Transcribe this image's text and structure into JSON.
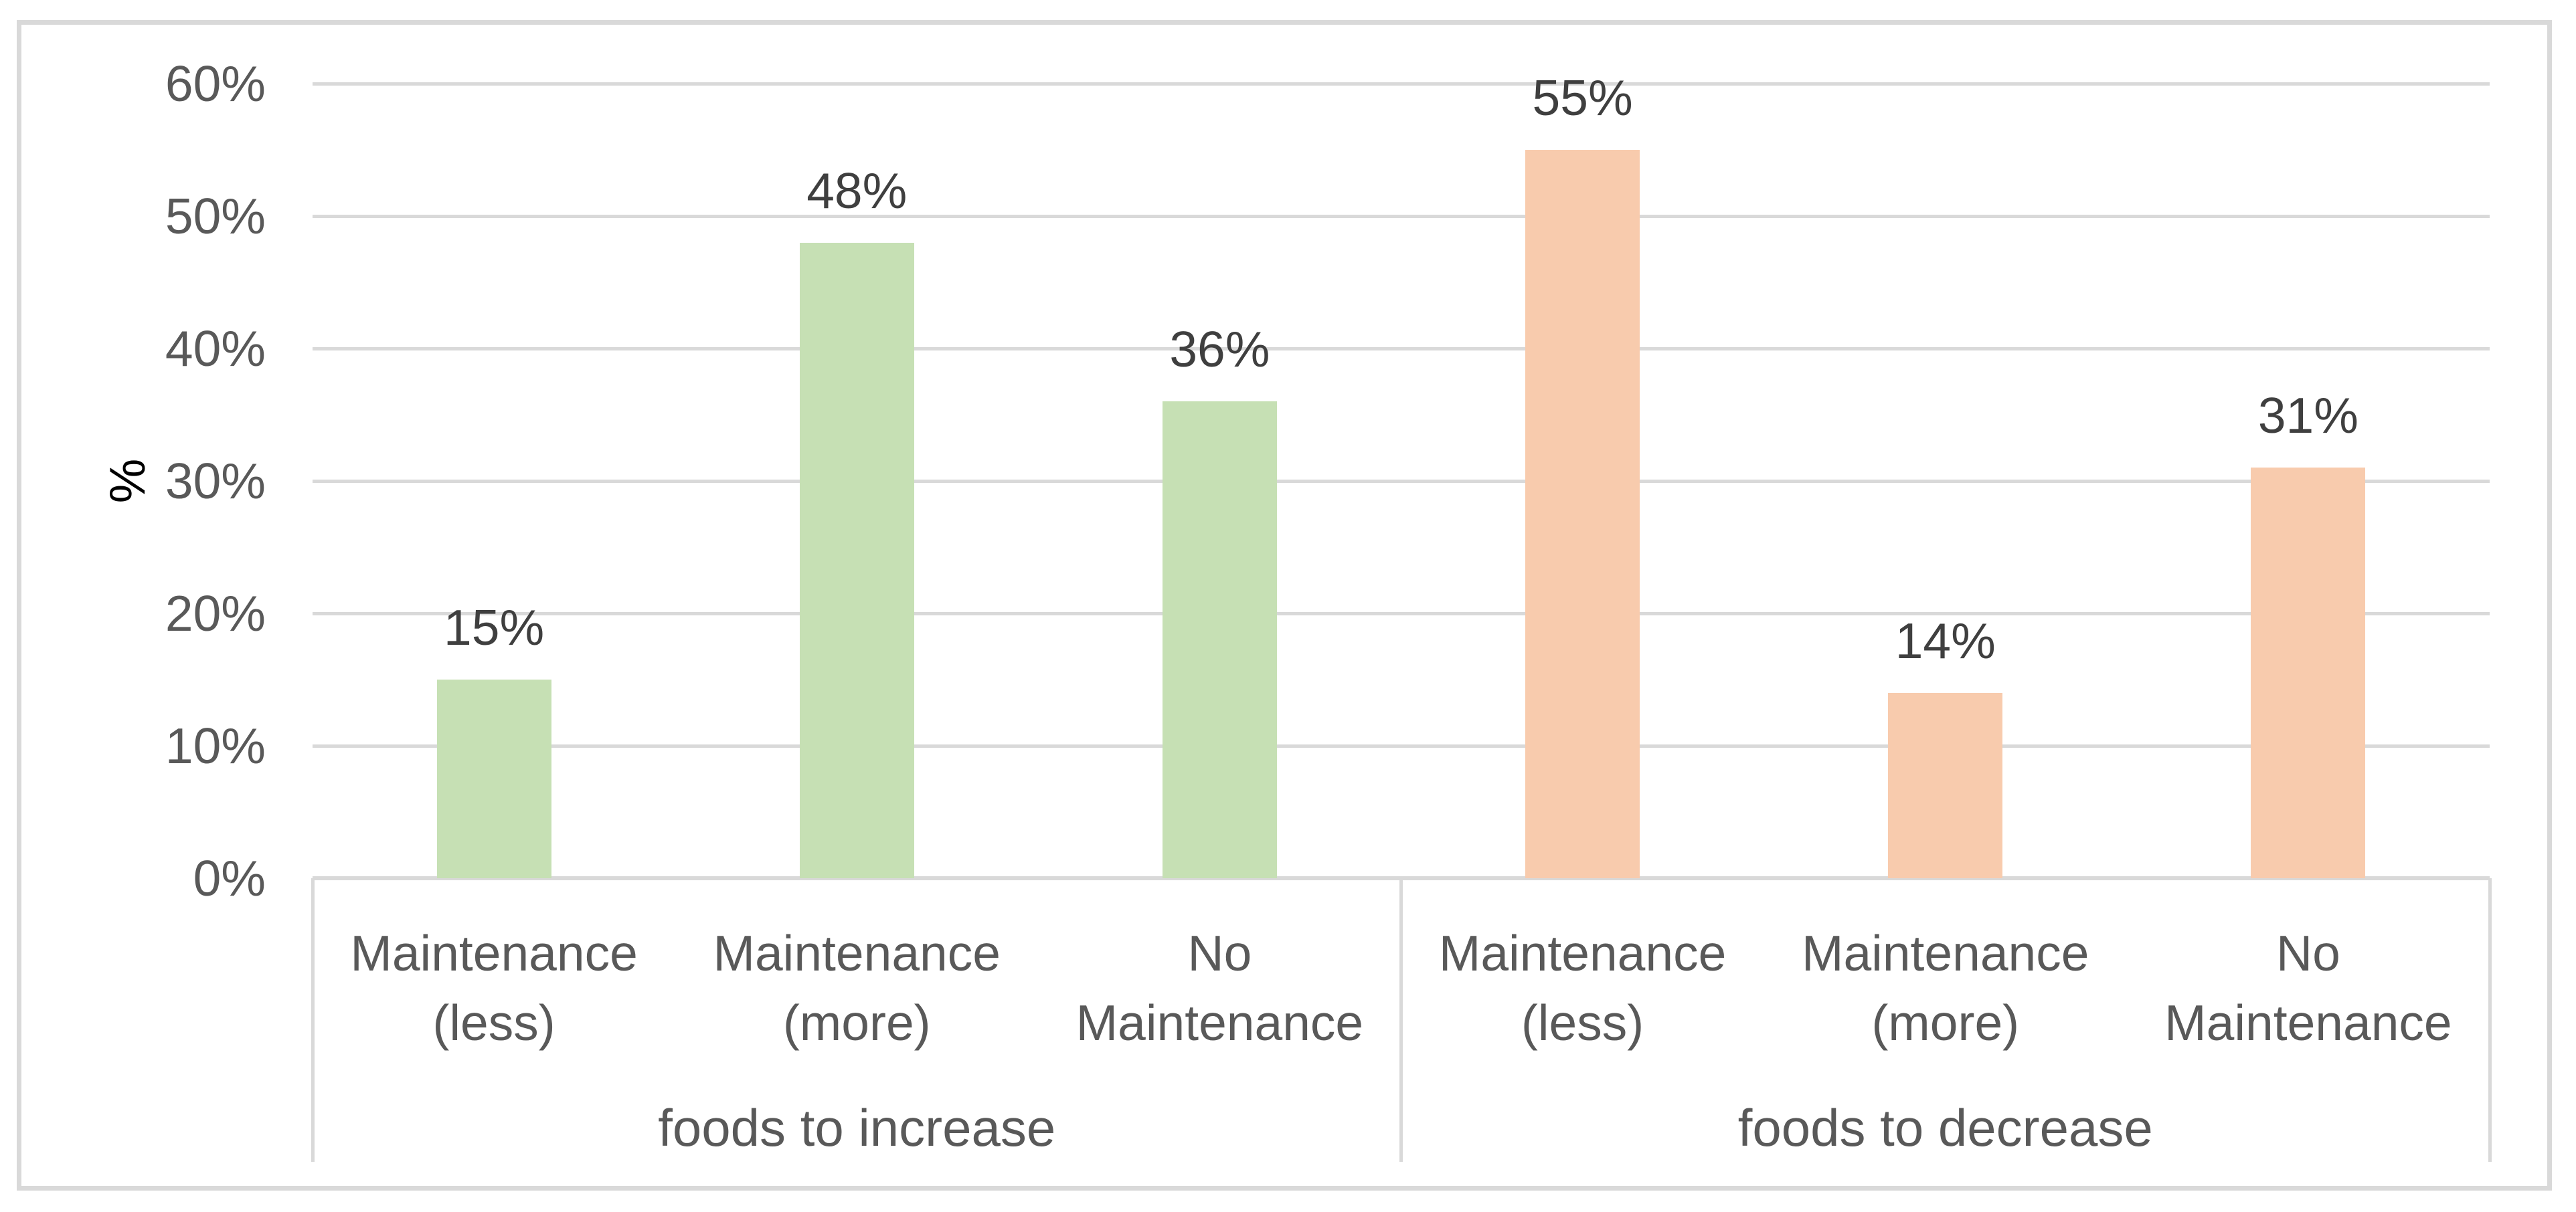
{
  "chart_data": {
    "type": "bar",
    "title": "",
    "xlabel": "",
    "ylabel": "%",
    "ylim": [
      0,
      60
    ],
    "grid": true,
    "legend": "none",
    "ytick_values": [
      0,
      10,
      20,
      30,
      40,
      50,
      60
    ],
    "ytick_labels": [
      "0%",
      "10%",
      "20%",
      "30%",
      "40%",
      "50%",
      "60%"
    ],
    "groups": [
      {
        "label": "foods to increase",
        "color": "#c6e0b4",
        "categories": [
          {
            "label": "Maintenance (less)",
            "lines": [
              "Maintenance",
              "(less)"
            ],
            "value": 15,
            "value_label": "15%"
          },
          {
            "label": "Maintenance (more)",
            "lines": [
              "Maintenance",
              "(more)"
            ],
            "value": 48,
            "value_label": "48%"
          },
          {
            "label": "No Maintenance",
            "lines": [
              "No",
              "Maintenance"
            ],
            "value": 36,
            "value_label": "36%"
          }
        ]
      },
      {
        "label": "foods to decrease",
        "color": "#f8cbad",
        "categories": [
          {
            "label": "Maintenance (less)",
            "lines": [
              "Maintenance",
              "(less)"
            ],
            "value": 55,
            "value_label": "55%"
          },
          {
            "label": "Maintenance (more)",
            "lines": [
              "Maintenance",
              "(more)"
            ],
            "value": 14,
            "value_label": "14%"
          },
          {
            "label": "No Maintenance",
            "lines": [
              "No",
              "Maintenance"
            ],
            "value": 31,
            "value_label": "31%"
          }
        ]
      }
    ]
  },
  "colors": {
    "background": "#ffffff",
    "frame_border": "#d9d9d9",
    "gridline": "#d9d9d9",
    "axis_line": "#d9d9d9",
    "divider": "#d9d9d9",
    "tick_text": "#595959",
    "category_text": "#595959",
    "group_text": "#595959",
    "data_label_text": "#3f3f3f",
    "bar_green": "#c6e0b4",
    "bar_orange": "#f8cbad"
  }
}
